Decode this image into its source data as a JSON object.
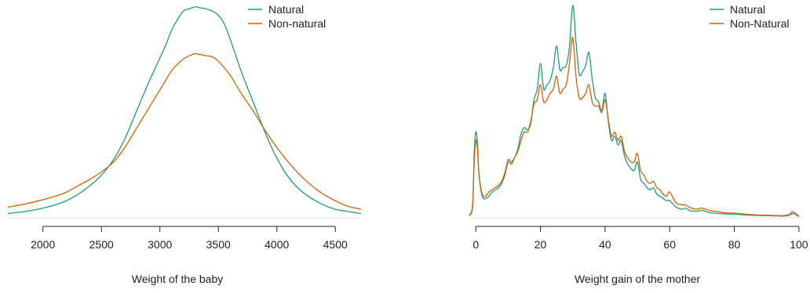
{
  "chart_data": [
    {
      "type": "line",
      "xlabel": "Weight of the baby",
      "ylabel": "",
      "xlim": [
        1700,
        4720
      ],
      "ylim": [
        0,
        1
      ],
      "xticks": [
        2000,
        2500,
        3000,
        3500,
        4000,
        4500
      ],
      "x_axis_visible_range": [
        2000,
        4500
      ],
      "grid": false,
      "legend_placement": "top-right",
      "series": [
        {
          "name": "Natural",
          "color": "#1b9e77",
          "x": [
            1700,
            1850,
            2000,
            2100,
            2200,
            2300,
            2400,
            2500,
            2600,
            2700,
            2800,
            2900,
            3000,
            3050,
            3100,
            3150,
            3200,
            3250,
            3300,
            3350,
            3400,
            3450,
            3500,
            3550,
            3600,
            3650,
            3700,
            3800,
            3900,
            4000,
            4100,
            4200,
            4300,
            4400,
            4500,
            4600,
            4720
          ],
          "values": [
            0.02,
            0.03,
            0.045,
            0.06,
            0.08,
            0.11,
            0.15,
            0.2,
            0.27,
            0.37,
            0.5,
            0.63,
            0.75,
            0.81,
            0.88,
            0.93,
            0.97,
            0.98,
            0.99,
            0.985,
            0.98,
            0.97,
            0.95,
            0.91,
            0.84,
            0.76,
            0.68,
            0.54,
            0.4,
            0.28,
            0.19,
            0.13,
            0.09,
            0.06,
            0.04,
            0.03,
            0.02
          ]
        },
        {
          "name": "Non-natural",
          "color": "#d95f02",
          "x": [
            1700,
            1850,
            2000,
            2100,
            2200,
            2300,
            2400,
            2500,
            2600,
            2700,
            2800,
            2900,
            3000,
            3100,
            3150,
            3200,
            3250,
            3300,
            3350,
            3400,
            3450,
            3500,
            3600,
            3700,
            3800,
            3900,
            4000,
            4100,
            4200,
            4300,
            4400,
            4500,
            4600,
            4720
          ],
          "values": [
            0.05,
            0.065,
            0.085,
            0.1,
            0.12,
            0.15,
            0.18,
            0.215,
            0.26,
            0.33,
            0.42,
            0.51,
            0.6,
            0.69,
            0.72,
            0.745,
            0.76,
            0.77,
            0.765,
            0.76,
            0.755,
            0.735,
            0.67,
            0.58,
            0.5,
            0.41,
            0.33,
            0.26,
            0.2,
            0.15,
            0.11,
            0.08,
            0.055,
            0.04
          ]
        }
      ]
    },
    {
      "type": "line",
      "xlabel": "Weight gain of the mother",
      "ylabel": "",
      "xlim": [
        -2,
        101
      ],
      "ylim": [
        0,
        1
      ],
      "xticks": [
        0,
        20,
        40,
        60,
        80,
        100
      ],
      "x_axis_visible_range": [
        0,
        100
      ],
      "grid": false,
      "legend_placement": "top-right",
      "series": [
        {
          "name": "Natural",
          "color": "#1b9e77",
          "x": [
            -2,
            -1,
            -0.5,
            0,
            0.5,
            1,
            2,
            3,
            4,
            5,
            6,
            7,
            8,
            9,
            10,
            11,
            12,
            13,
            14,
            15,
            16,
            17,
            18,
            19,
            20,
            21,
            22,
            23,
            24,
            25,
            26,
            27,
            28,
            29,
            30,
            31,
            32,
            33,
            34,
            35,
            36,
            37,
            38,
            39,
            40,
            41,
            42,
            43,
            44,
            45,
            46,
            47,
            48,
            49,
            50,
            51,
            52,
            53,
            54,
            55,
            56,
            57,
            58,
            59,
            60,
            62,
            64,
            65,
            66,
            68,
            70,
            72,
            75,
            78,
            80,
            85,
            90,
            95,
            97,
            98,
            99,
            100
          ],
          "values": [
            0.01,
            0.06,
            0.3,
            0.4,
            0.35,
            0.2,
            0.1,
            0.09,
            0.1,
            0.12,
            0.13,
            0.14,
            0.16,
            0.2,
            0.26,
            0.25,
            0.28,
            0.32,
            0.39,
            0.42,
            0.41,
            0.44,
            0.55,
            0.6,
            0.72,
            0.6,
            0.62,
            0.64,
            0.7,
            0.8,
            0.69,
            0.7,
            0.71,
            0.8,
            0.99,
            0.82,
            0.67,
            0.68,
            0.71,
            0.77,
            0.65,
            0.56,
            0.54,
            0.5,
            0.58,
            0.45,
            0.36,
            0.38,
            0.34,
            0.36,
            0.29,
            0.25,
            0.23,
            0.22,
            0.26,
            0.18,
            0.16,
            0.14,
            0.13,
            0.14,
            0.11,
            0.1,
            0.09,
            0.08,
            0.08,
            0.05,
            0.04,
            0.045,
            0.035,
            0.03,
            0.035,
            0.025,
            0.02,
            0.018,
            0.017,
            0.012,
            0.01,
            0.008,
            0.012,
            0.02,
            0.015,
            0.005
          ]
        },
        {
          "name": "Non-Natural",
          "color": "#d95f02",
          "x": [
            -2,
            -1,
            -0.5,
            0,
            0.5,
            1,
            2,
            3,
            4,
            5,
            6,
            7,
            8,
            9,
            10,
            11,
            12,
            13,
            14,
            15,
            16,
            17,
            18,
            19,
            20,
            21,
            22,
            23,
            24,
            25,
            26,
            27,
            28,
            29,
            30,
            31,
            32,
            33,
            34,
            35,
            36,
            37,
            38,
            39,
            40,
            41,
            42,
            43,
            44,
            45,
            46,
            47,
            48,
            49,
            50,
            51,
            52,
            53,
            54,
            55,
            56,
            57,
            58,
            59,
            60,
            62,
            64,
            65,
            66,
            68,
            70,
            72,
            75,
            78,
            80,
            85,
            90,
            95,
            97,
            98,
            99,
            100
          ],
          "values": [
            0.01,
            0.05,
            0.26,
            0.36,
            0.32,
            0.2,
            0.11,
            0.1,
            0.12,
            0.13,
            0.14,
            0.15,
            0.17,
            0.21,
            0.27,
            0.26,
            0.28,
            0.31,
            0.36,
            0.4,
            0.4,
            0.45,
            0.53,
            0.55,
            0.62,
            0.54,
            0.55,
            0.58,
            0.6,
            0.66,
            0.58,
            0.6,
            0.62,
            0.72,
            0.84,
            0.66,
            0.56,
            0.56,
            0.58,
            0.62,
            0.54,
            0.52,
            0.52,
            0.49,
            0.55,
            0.46,
            0.38,
            0.4,
            0.36,
            0.38,
            0.31,
            0.28,
            0.26,
            0.26,
            0.3,
            0.22,
            0.2,
            0.17,
            0.16,
            0.17,
            0.14,
            0.13,
            0.11,
            0.1,
            0.12,
            0.07,
            0.06,
            0.06,
            0.05,
            0.04,
            0.045,
            0.035,
            0.028,
            0.022,
            0.022,
            0.015,
            0.012,
            0.01,
            0.015,
            0.028,
            0.02,
            0.008
          ]
        }
      ]
    }
  ]
}
